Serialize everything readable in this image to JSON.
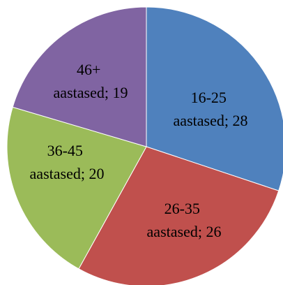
{
  "chart_data": {
    "type": "pie",
    "title": "",
    "start_angle_deg": 0,
    "direction": "clockwise",
    "slices": [
      {
        "category": "16-25",
        "suffix": "aastased; 28",
        "value": 28,
        "color": "#4F81BD"
      },
      {
        "category": "26-35",
        "suffix": "aastased; 26",
        "value": 26,
        "color": "#C0504D"
      },
      {
        "category": "36-45",
        "suffix": "aastased; 20",
        "value": 20,
        "color": "#9BBB59"
      },
      {
        "category": "46+",
        "suffix": "aastased; 19",
        "value": 19,
        "color": "#8064A2"
      }
    ]
  }
}
